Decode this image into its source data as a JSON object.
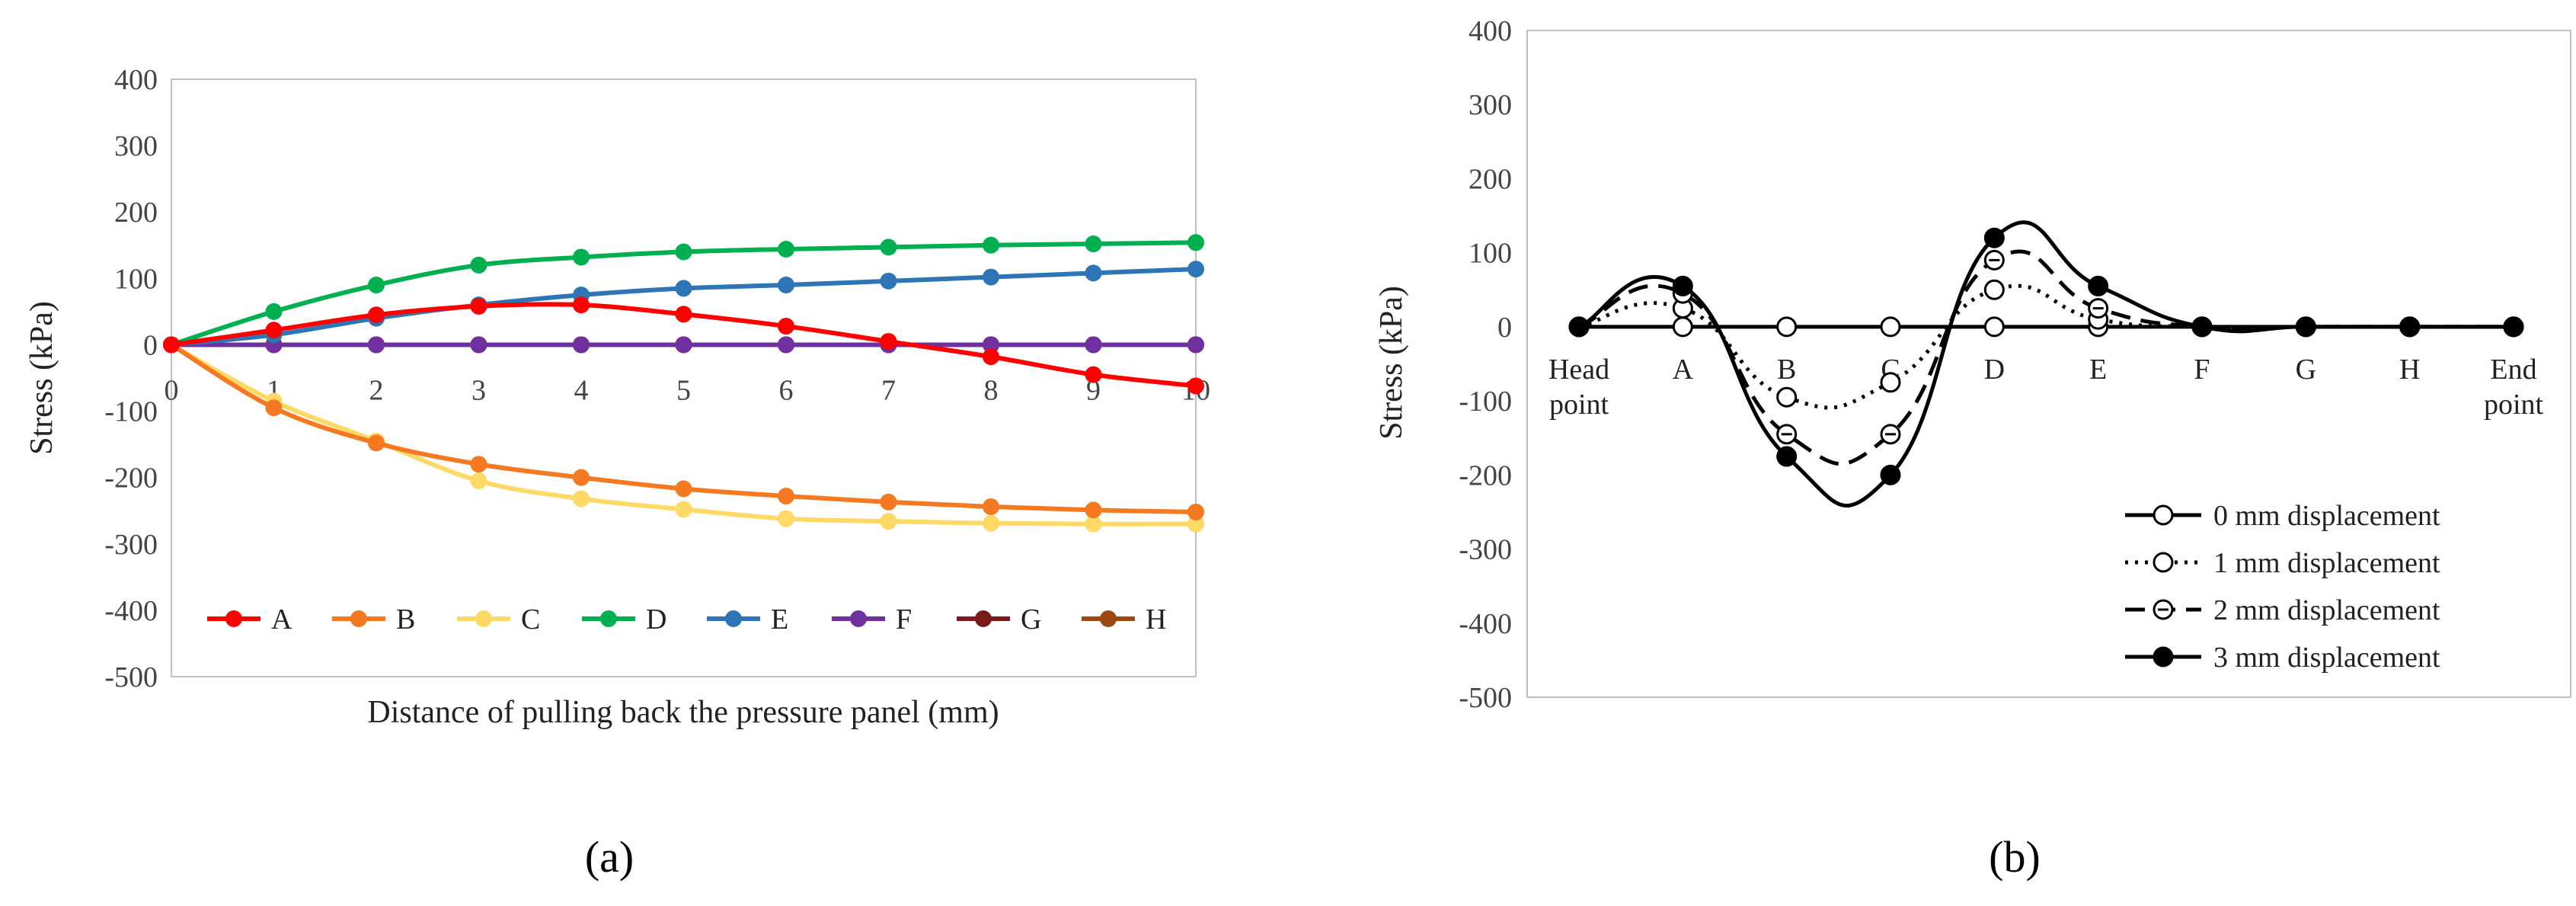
{
  "chart_data": [
    {
      "type": "line",
      "panel_label": "(a)",
      "xlabel": "Distance of pulling back the pressure panel (mm)",
      "ylabel": "Stress (kPa)",
      "xlim": [
        0,
        10
      ],
      "ylim": [
        -500,
        400
      ],
      "x_ticks": [
        "0",
        "1",
        "2",
        "3",
        "4",
        "5",
        "6",
        "7",
        "8",
        "9",
        "10"
      ],
      "y_ticks": [
        "400",
        "300",
        "200",
        "100",
        "0",
        "-100",
        "-200",
        "-300",
        "-400",
        "-500"
      ],
      "x": [
        0,
        1,
        2,
        3,
        4,
        5,
        6,
        7,
        8,
        9,
        10
      ],
      "legend_position": "bottom-inside",
      "series": [
        {
          "name": "A",
          "color": "#ff0000",
          "values": [
            0,
            22,
            45,
            58,
            60,
            46,
            28,
            5,
            -18,
            -45,
            -62
          ]
        },
        {
          "name": "B",
          "color": "#f47920",
          "values": [
            0,
            -95,
            -148,
            -180,
            -200,
            -217,
            -228,
            -237,
            -244,
            -249,
            -252
          ]
        },
        {
          "name": "C",
          "color": "#ffd966",
          "values": [
            0,
            -85,
            -145,
            -205,
            -232,
            -248,
            -262,
            -266,
            -269,
            -270,
            -270
          ]
        },
        {
          "name": "D",
          "color": "#00b050",
          "values": [
            0,
            50,
            90,
            120,
            132,
            140,
            144,
            147,
            150,
            152,
            154
          ]
        },
        {
          "name": "E",
          "color": "#2e75b6",
          "values": [
            0,
            15,
            40,
            60,
            75,
            85,
            90,
            96,
            102,
            108,
            114
          ]
        },
        {
          "name": "F",
          "color": "#7030a0",
          "values": [
            0,
            0,
            0,
            0,
            0,
            0,
            0,
            0,
            0,
            0,
            0
          ]
        },
        {
          "name": "G",
          "color": "#7b1a1a",
          "values": [
            0,
            0,
            0,
            0,
            0,
            0,
            0,
            0,
            0,
            0,
            0
          ]
        },
        {
          "name": "H",
          "color": "#9c4a12",
          "values": [
            0,
            0,
            0,
            0,
            0,
            0,
            0,
            0,
            0,
            0,
            0
          ]
        }
      ]
    },
    {
      "type": "line",
      "panel_label": "(b)",
      "ylabel": "Stress (kPa)",
      "ylim": [
        -500,
        400
      ],
      "y_ticks": [
        "400",
        "300",
        "200",
        "100",
        "0",
        "-100",
        "-200",
        "-300",
        "-400",
        "-500"
      ],
      "categories": [
        "Head point",
        "A",
        "B",
        "C",
        "D",
        "E",
        "F",
        "G",
        "H",
        "End point"
      ],
      "legend_position": "bottom-right",
      "series": [
        {
          "name": "0 mm displacement",
          "style": "solid",
          "marker": "open",
          "values": [
            0,
            0,
            0,
            0,
            0,
            0,
            0,
            0,
            0,
            0
          ]
        },
        {
          "name": "1 mm displacement",
          "style": "dotted",
          "marker": "open",
          "values": [
            0,
            25,
            -95,
            -75,
            50,
            10,
            0,
            0,
            0,
            0
          ]
        },
        {
          "name": "2 mm displacement",
          "style": "dashed",
          "marker": "half",
          "values": [
            0,
            45,
            -145,
            -145,
            90,
            25,
            0,
            0,
            0,
            0
          ]
        },
        {
          "name": "3 mm displacement",
          "style": "solid",
          "marker": "filled",
          "values": [
            0,
            55,
            -175,
            -200,
            120,
            55,
            0,
            0,
            0,
            0
          ]
        }
      ]
    }
  ]
}
